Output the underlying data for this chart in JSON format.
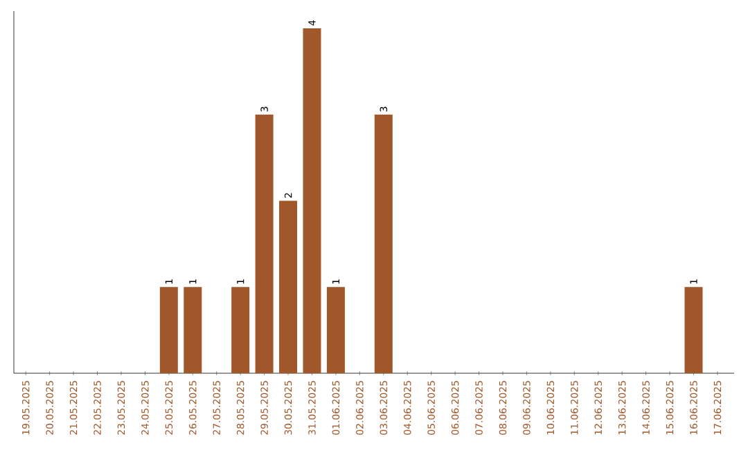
{
  "chart_data": {
    "type": "bar",
    "color": "#a0582a",
    "categories": [
      "19.05.2025",
      "20.05.2025",
      "21.05.2025",
      "22.05.2025",
      "23.05.2025",
      "24.05.2025",
      "25.05.2025",
      "26.05.2025",
      "27.05.2025",
      "28.05.2025",
      "29.05.2025",
      "30.05.2025",
      "31.05.2025",
      "01.06.2025",
      "02.06.2025",
      "03.06.2025",
      "04.06.2025",
      "05.06.2025",
      "06.06.2025",
      "07.06.2025",
      "08.06.2025",
      "09.06.2025",
      "10.06.2025",
      "11.06.2025",
      "12.06.2025",
      "13.06.2025",
      "14.06.2025",
      "15.06.2025",
      "16.06.2025",
      "17.06.2025"
    ],
    "values": [
      0,
      0,
      0,
      0,
      0,
      0,
      1,
      1,
      0,
      1,
      3,
      2,
      4,
      1,
      0,
      3,
      0,
      0,
      0,
      0,
      0,
      0,
      0,
      0,
      0,
      0,
      0,
      0,
      1,
      0
    ],
    "value_labels": [
      null,
      null,
      null,
      null,
      null,
      null,
      "1",
      "1",
      null,
      "1",
      "3",
      "2",
      "4",
      "1",
      null,
      "3",
      null,
      null,
      null,
      null,
      null,
      null,
      null,
      null,
      null,
      null,
      null,
      null,
      "1",
      null
    ]
  }
}
